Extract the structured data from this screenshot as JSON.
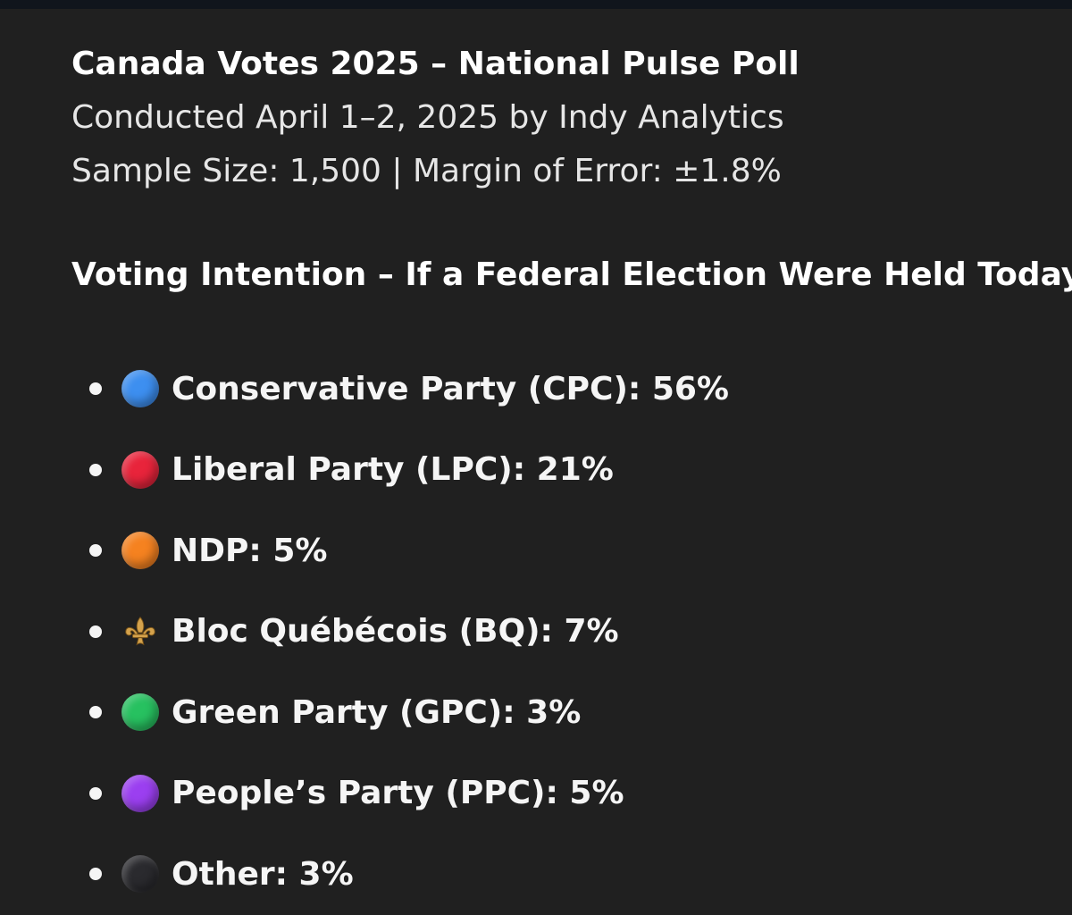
{
  "poll": {
    "title": "Canada Votes 2025 – National Pulse Poll",
    "conducted": "Conducted April 1–2, 2025 by Indy Analytics",
    "sample_info": "Sample Size: 1,500 | Margin of Error: ±1.8%"
  },
  "section": {
    "heading": "Voting Intention – If a Federal Election Were Held Today:"
  },
  "parties": [
    {
      "label": "Conservative Party (CPC): 56%",
      "icon": "blue-circle-emoji",
      "color": "#3d8ff0"
    },
    {
      "label": "Liberal Party (LPC): 21%",
      "icon": "red-circle-emoji",
      "color": "#e8243b"
    },
    {
      "label": "NDP: 5%",
      "icon": "orange-circle-emoji",
      "color": "#f58220"
    },
    {
      "label": "Bloc Québécois (BQ): 7%",
      "icon": "fleur-de-lis-emoji",
      "color": "#c8963e"
    },
    {
      "label": "Green Party (GPC): 3%",
      "icon": "green-circle-emoji",
      "color": "#27c160"
    },
    {
      "label": "People’s Party (PPC): 5%",
      "icon": "purple-circle-emoji",
      "color": "#9b3ff0"
    },
    {
      "label": "Other: 3%",
      "icon": "black-circle-emoji",
      "color": "#2a2a2e"
    }
  ]
}
